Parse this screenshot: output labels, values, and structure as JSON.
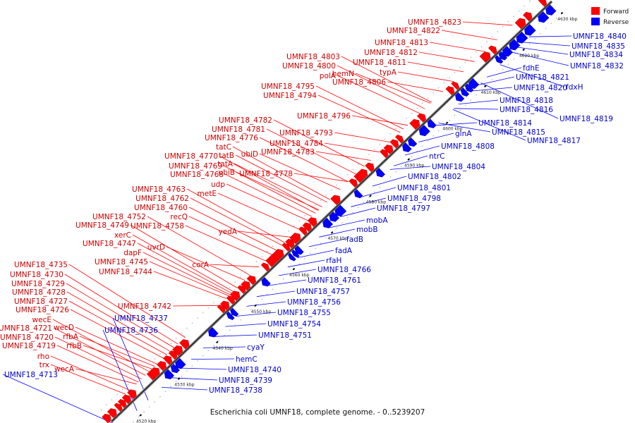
{
  "caption": "Escherichia coli UMNF18, complete genome. - 0..5239207",
  "legend": {
    "forward_label": "Forward",
    "reverse_label": "Reverse",
    "forward_color": "#ff0000",
    "reverse_color": "#0000ff"
  },
  "ticks": [
    "4520 kbp",
    "4530 kbp",
    "4540 kbp",
    "4550 kbp",
    "4560 kbp",
    "4570 kbp",
    "4580 kbp",
    "4590 kbp",
    "4600 kbp",
    "4610 kbp",
    "4620 kbp",
    "4630 kbp"
  ],
  "forward_labels": [
    "UMNF18_4823",
    "UMNF18_4822",
    "UMNF18_4813",
    "UMNF18_4812",
    "UMNF18_4811",
    "UMNF18_4803",
    "UMNF18_4800",
    "typA",
    "polA",
    "hemN",
    "UMNF18_4806",
    "UMNF18_4795",
    "UMNF18_4794",
    "UMNF18_4796",
    "UMNF18_4782",
    "UMNF18_4781",
    "UMNF18_4793",
    "UMNF18_4776",
    "UMNF18_4784",
    "tatC",
    "UMNF18_4783",
    "tatB",
    "ubiD",
    "UMNF18_4770",
    "tatA",
    "UMNF18_4769",
    "ubiB",
    "UMNF18_4778",
    "UMNF18_4768",
    "udp",
    "metE",
    "UMNF18_4763",
    "UMNF18_4762",
    "UMNF18_4760",
    "recQ",
    "UMNF18_4752",
    "UMNF18_4749",
    "UMNF18_4758",
    "xerC",
    "yedA",
    "UMNF18_4747",
    "uvrD",
    "dapF",
    "UMNF18_4745",
    "corA",
    "UMNF18_4744",
    "UMNF18_4735",
    "UMNF18_4730",
    "UMNF18_4729",
    "UMNF18_4728",
    "UMNF18_4727",
    "UMNF18_4742",
    "UMNF18_4726",
    "wecE",
    "UMNF18_4721",
    "wecD",
    "UMNF18_4720",
    "rfbA",
    "UMNF18_4719",
    "rfbB",
    "rho",
    "trx",
    "wecA"
  ],
  "reverse_labels": [
    "UMNF18_4840",
    "UMNF18_4835",
    "UMNF18_4834",
    "UMNF18_4832",
    "fdhE",
    "UMNF18_4821",
    "fdxH",
    "UMNF18_4820",
    "UMNF18_4818",
    "UMNF18_4816",
    "UMNF18_4819",
    "UMNF18_4814",
    "UMNF18_4815",
    "glnA",
    "UMNF18_4817",
    "UMNF18_4808",
    "ntrC",
    "UMNF18_4804",
    "UMNF18_4802",
    "UMNF18_4801",
    "UMNF18_4798",
    "UMNF18_4797",
    "mobA",
    "mobB",
    "fadB",
    "fadA",
    "rfaH",
    "UMNF18_4766",
    "UMNF18_4761",
    "UMNF18_4757",
    "UMNF18_4756",
    "UMNF18_4755",
    "UMNF18_4754",
    "UMNF18_4751",
    "cyaY",
    "hemC",
    "UMNF18_4740",
    "UMNF18_4739",
    "UMNF18_4738",
    "UMNF18_4737",
    "UMNF18_4736",
    "UMNF18_4713"
  ]
}
